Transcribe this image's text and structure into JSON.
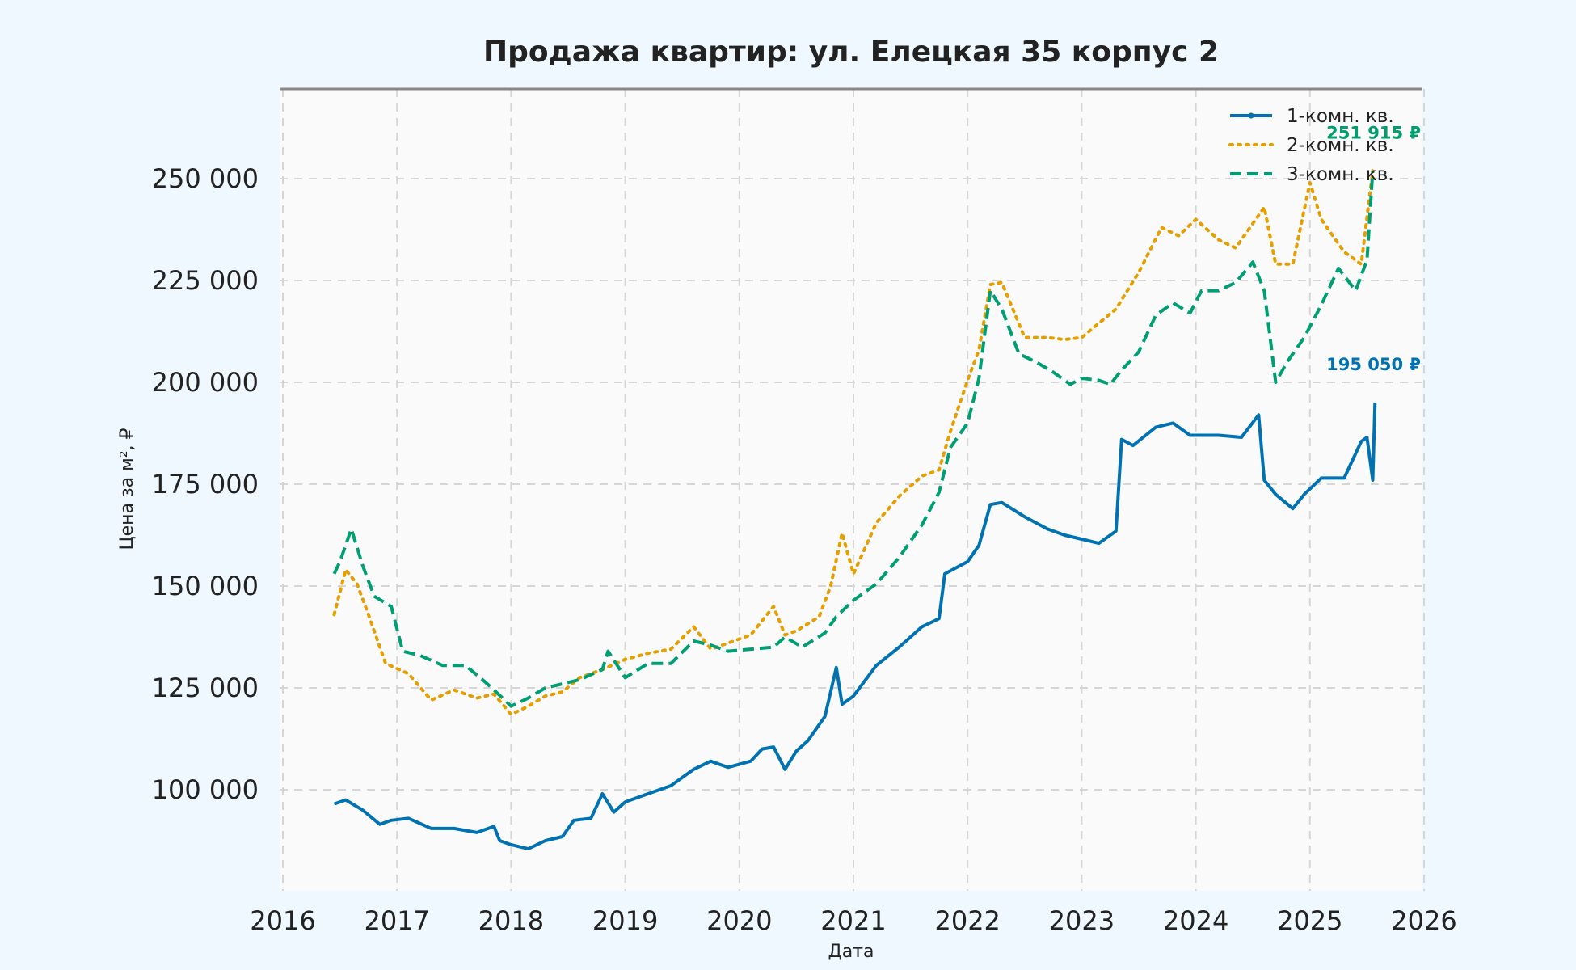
{
  "chart_data": {
    "type": "line",
    "title": "Продажа квартир: ул. Елецкая 35 корпус 2",
    "xlabel": "Дата",
    "ylabel": "Цена за м², ₽",
    "xlim": [
      2016.0,
      2026.0
    ],
    "ylim": [
      78000,
      272000
    ],
    "x_ticks": [
      2016,
      2017,
      2018,
      2019,
      2020,
      2021,
      2022,
      2023,
      2024,
      2025,
      2026
    ],
    "x_tick_labels": [
      "2016",
      "2017",
      "2018",
      "2019",
      "2020",
      "2021",
      "2022",
      "2023",
      "2024",
      "2025",
      "2026"
    ],
    "y_ticks": [
      100000,
      125000,
      150000,
      175000,
      200000,
      225000,
      250000
    ],
    "y_tick_labels": [
      "100 000",
      "125 000",
      "150 000",
      "175 000",
      "200 000",
      "225 000",
      "250 000"
    ],
    "grid": true,
    "legend_position": "top-right",
    "colors": {
      "background": "#f0f8ff",
      "plot_background": "#fafafa",
      "top_spine": "#888888"
    },
    "series": [
      {
        "name": "1-комн. кв.",
        "color": "#0072b2",
        "style": "solid",
        "end_label": "195 050 ₽",
        "x": [
          2016.45,
          2016.55,
          2016.7,
          2016.85,
          2016.95,
          2017.1,
          2017.3,
          2017.5,
          2017.7,
          2017.85,
          2017.9,
          2018.0,
          2018.15,
          2018.3,
          2018.45,
          2018.55,
          2018.7,
          2018.8,
          2018.9,
          2019.0,
          2019.2,
          2019.4,
          2019.6,
          2019.75,
          2019.9,
          2020.1,
          2020.2,
          2020.3,
          2020.4,
          2020.5,
          2020.6,
          2020.75,
          2020.85,
          2020.9,
          2021.0,
          2021.2,
          2021.4,
          2021.6,
          2021.75,
          2021.8,
          2022.0,
          2022.1,
          2022.2,
          2022.3,
          2022.5,
          2022.7,
          2022.85,
          2023.0,
          2023.15,
          2023.3,
          2023.35,
          2023.45,
          2023.65,
          2023.8,
          2023.95,
          2024.2,
          2024.4,
          2024.55,
          2024.6,
          2024.7,
          2024.85,
          2024.95,
          2025.1,
          2025.3,
          2025.45,
          2025.5,
          2025.55,
          2025.57
        ],
        "y": [
          96500,
          97500,
          95000,
          91500,
          92500,
          93000,
          90500,
          90500,
          89500,
          91000,
          87500,
          86500,
          85500,
          87500,
          88500,
          92500,
          93000,
          99000,
          94500,
          97000,
          99000,
          101000,
          105000,
          107000,
          105500,
          107000,
          110000,
          110500,
          105000,
          109500,
          112000,
          118000,
          130000,
          121000,
          123000,
          130500,
          135000,
          140000,
          142000,
          153000,
          156000,
          160000,
          170000,
          170500,
          167000,
          164000,
          162500,
          161500,
          160500,
          163500,
          186000,
          184500,
          189000,
          190000,
          187000,
          187000,
          186500,
          192000,
          176000,
          172500,
          169000,
          172500,
          176500,
          176500,
          185500,
          186500,
          176000,
          195050
        ]
      },
      {
        "name": "2-комн. кв.",
        "color": "#e69f00",
        "style": "dotted",
        "end_label": "251 915 ₽",
        "x": [
          2016.45,
          2016.55,
          2016.65,
          2016.75,
          2016.9,
          2017.1,
          2017.3,
          2017.5,
          2017.7,
          2017.85,
          2018.0,
          2018.15,
          2018.3,
          2018.45,
          2018.6,
          2018.8,
          2019.0,
          2019.2,
          2019.4,
          2019.6,
          2019.75,
          2019.9,
          2020.1,
          2020.3,
          2020.4,
          2020.5,
          2020.7,
          2020.8,
          2020.9,
          2021.0,
          2021.2,
          2021.4,
          2021.6,
          2021.75,
          2021.85,
          2022.0,
          2022.1,
          2022.2,
          2022.3,
          2022.5,
          2022.7,
          2022.85,
          2023.0,
          2023.15,
          2023.3,
          2023.5,
          2023.7,
          2023.85,
          2024.0,
          2024.2,
          2024.35,
          2024.5,
          2024.6,
          2024.7,
          2024.85,
          2025.0,
          2025.1,
          2025.3,
          2025.45,
          2025.55
        ],
        "y": [
          143000,
          154000,
          150500,
          143000,
          131000,
          128500,
          122000,
          124500,
          122500,
          123500,
          118500,
          120500,
          123000,
          124000,
          127500,
          129500,
          132000,
          133500,
          134500,
          140000,
          134500,
          136000,
          138000,
          145000,
          138000,
          139000,
          142500,
          150000,
          163000,
          153000,
          165500,
          172000,
          177000,
          178500,
          188000,
          200500,
          208000,
          224000,
          224500,
          211000,
          211000,
          210500,
          211000,
          214500,
          218000,
          227000,
          238000,
          236000,
          240000,
          235000,
          233000,
          239000,
          243000,
          229000,
          229000,
          249000,
          240000,
          232000,
          229000,
          251915
        ]
      },
      {
        "name": "3-комн. кв.",
        "color": "#009e73",
        "style": "dashed",
        "end_label": "251 915 ₽",
        "x": [
          2016.45,
          2016.5,
          2016.6,
          2016.7,
          2016.8,
          2016.95,
          2017.05,
          2017.2,
          2017.4,
          2017.6,
          2017.75,
          2017.85,
          2018.0,
          2018.15,
          2018.3,
          2018.45,
          2018.6,
          2018.8,
          2018.85,
          2019.0,
          2019.2,
          2019.4,
          2019.6,
          2019.75,
          2019.9,
          2020.1,
          2020.3,
          2020.4,
          2020.55,
          2020.75,
          2020.85,
          2021.0,
          2021.2,
          2021.4,
          2021.6,
          2021.75,
          2021.85,
          2022.0,
          2022.1,
          2022.2,
          2022.3,
          2022.45,
          2022.6,
          2022.75,
          2022.9,
          2023.0,
          2023.15,
          2023.25,
          2023.35,
          2023.5,
          2023.65,
          2023.8,
          2023.95,
          2024.05,
          2024.2,
          2024.35,
          2024.5,
          2024.6,
          2024.7,
          2024.8,
          2024.95,
          2025.1,
          2025.25,
          2025.4,
          2025.5,
          2025.55
        ],
        "y": [
          153000,
          156000,
          164000,
          155000,
          147500,
          145000,
          134000,
          133000,
          130500,
          130500,
          127000,
          124500,
          120500,
          122500,
          125000,
          126000,
          127000,
          129500,
          134000,
          127500,
          131000,
          131000,
          136500,
          135500,
          134000,
          134500,
          135000,
          137500,
          135000,
          138500,
          142500,
          146500,
          150500,
          157000,
          165000,
          173000,
          184000,
          190000,
          201000,
          222500,
          218000,
          207000,
          205000,
          202500,
          199500,
          201000,
          200500,
          199500,
          203000,
          207500,
          216500,
          219500,
          217000,
          222500,
          222500,
          224500,
          229500,
          222500,
          200000,
          205000,
          211000,
          219000,
          228000,
          222500,
          230000,
          251915
        ]
      }
    ]
  }
}
